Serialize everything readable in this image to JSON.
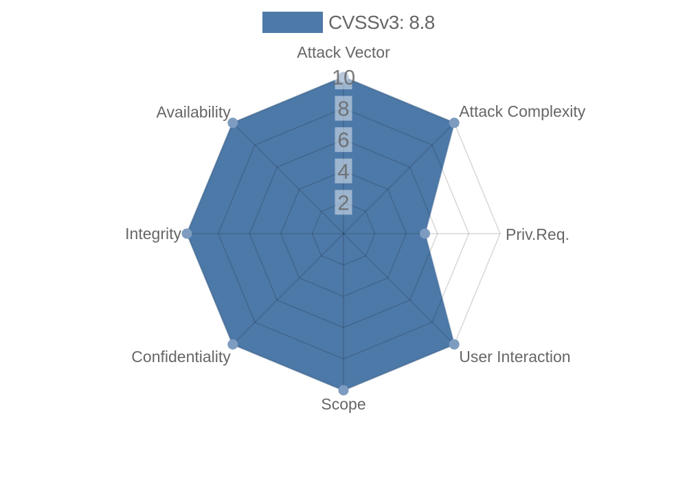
{
  "page": {
    "background": "#ffffff"
  },
  "chart_data": {
    "type": "radar",
    "title": "",
    "legend": "CVSSv3: 8.8",
    "legend_position": "top",
    "categories": [
      "Attack Vector",
      "Attack Complexity",
      "Priv.Req.",
      "User Interaction",
      "Scope",
      "Confidentiality",
      "Integrity",
      "Availability"
    ],
    "series": [
      {
        "name": "CVSSv3: 8.8",
        "values": [
          10,
          10,
          5.2,
          10,
          10,
          10,
          10,
          10
        ]
      }
    ],
    "ticks": [
      2,
      4,
      6,
      8,
      10
    ],
    "rlim": [
      0,
      10
    ],
    "grid": "polygon-web",
    "grid_on": true,
    "colors": {
      "series_fill": "#4d79a8",
      "series_border": "#3f6a96",
      "point_marker": "#7e9cc0",
      "grid_line": "rgba(0,0,0,0.15)",
      "label_text": "#666666",
      "tick_text": "#666666",
      "tick_backdrop": "rgba(255,255,255,0.45)"
    }
  }
}
